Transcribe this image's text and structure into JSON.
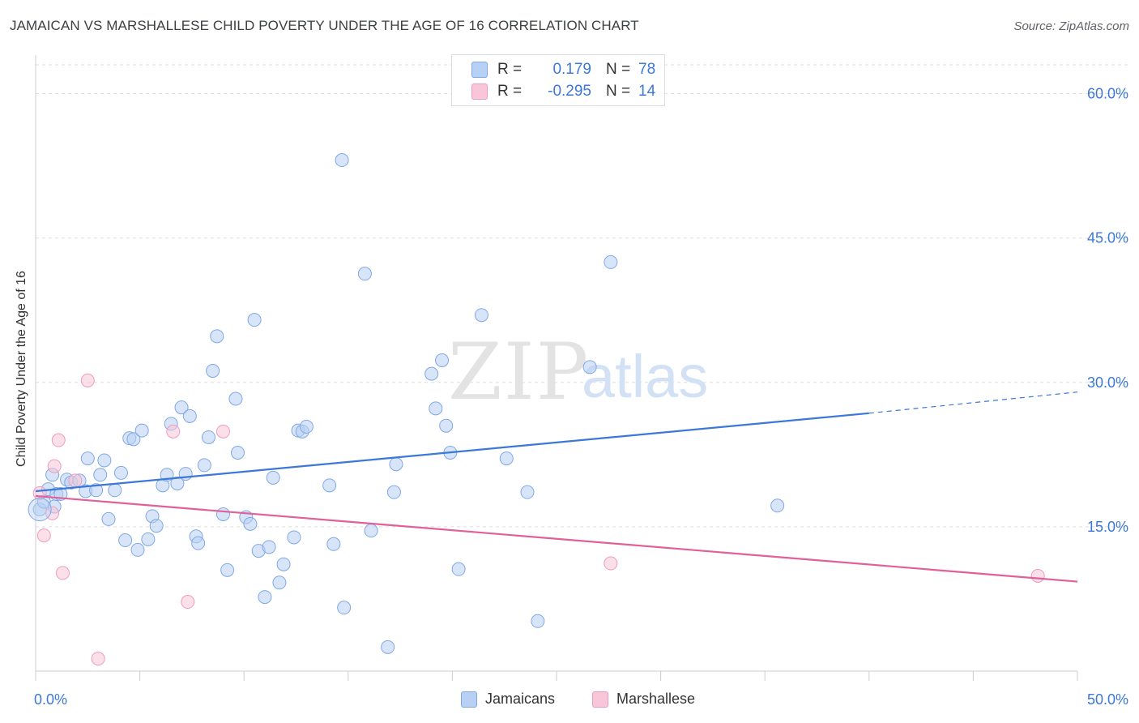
{
  "title": "JAMAICAN VS MARSHALLESE CHILD POVERTY UNDER THE AGE OF 16 CORRELATION CHART",
  "source": "Source: ZipAtlas.com",
  "watermark": {
    "zip": "ZIP",
    "atlas": "atlas"
  },
  "colors": {
    "blue": "#3b78d8",
    "blue_fill": "#b8d0f3",
    "blue_stroke": "#7fa8e6",
    "pink": "#e0609a",
    "pink_fill": "#f8c6d8",
    "pink_stroke": "#ef9bbb",
    "grid": "#dddddd",
    "axis_label": "#3b78d8"
  },
  "legend": {
    "rows": [
      {
        "r_label": "R =",
        "r_value": "0.179",
        "n_label": "N =",
        "n_value": "78"
      },
      {
        "r_label": "R =",
        "r_value": "-0.295",
        "n_label": "N =",
        "n_value": "14"
      }
    ],
    "bottom": [
      "Jamaicans",
      "Marshallese"
    ]
  },
  "chart_data": {
    "type": "scatter",
    "title": "JAMAICAN VS MARSHALLESE CHILD POVERTY UNDER THE AGE OF 16 CORRELATION CHART",
    "xlabel": "",
    "ylabel": "Child Poverty Under the Age of 16",
    "xlim": [
      0,
      50
    ],
    "ylim": [
      0,
      63
    ],
    "x_tick_labels": [
      "0.0%",
      "50.0%"
    ],
    "y_ticks": [
      15,
      30,
      45,
      60
    ],
    "y_tick_labels": [
      "15.0%",
      "30.0%",
      "45.0%",
      "60.0%"
    ],
    "grid": true,
    "legend_position": "top-center",
    "series": [
      {
        "name": "Jamaicans",
        "color": "#3b78d8",
        "points": [
          [
            0.2,
            16.8
          ],
          [
            0.4,
            17.6
          ],
          [
            0.6,
            18.9
          ],
          [
            0.8,
            20.4
          ],
          [
            0.9,
            17.1
          ],
          [
            1.0,
            18.4
          ],
          [
            1.2,
            18.4
          ],
          [
            1.5,
            19.9
          ],
          [
            1.7,
            19.6
          ],
          [
            2.1,
            19.8
          ],
          [
            2.4,
            18.7
          ],
          [
            2.5,
            22.1
          ],
          [
            2.9,
            18.8
          ],
          [
            3.1,
            20.4
          ],
          [
            3.3,
            21.9
          ],
          [
            3.5,
            15.8
          ],
          [
            3.8,
            18.8
          ],
          [
            4.1,
            20.6
          ],
          [
            4.3,
            13.6
          ],
          [
            4.5,
            24.2
          ],
          [
            4.7,
            24.1
          ],
          [
            4.9,
            12.6
          ],
          [
            5.1,
            25.0
          ],
          [
            5.4,
            13.7
          ],
          [
            5.6,
            16.1
          ],
          [
            5.8,
            15.1
          ],
          [
            6.1,
            19.3
          ],
          [
            6.3,
            20.4
          ],
          [
            6.5,
            25.7
          ],
          [
            6.8,
            19.5
          ],
          [
            7.0,
            27.4
          ],
          [
            7.2,
            20.5
          ],
          [
            7.4,
            26.5
          ],
          [
            7.7,
            14.0
          ],
          [
            7.8,
            13.3
          ],
          [
            8.1,
            21.4
          ],
          [
            8.3,
            24.3
          ],
          [
            8.5,
            31.2
          ],
          [
            8.7,
            34.8
          ],
          [
            9.0,
            16.3
          ],
          [
            9.2,
            10.5
          ],
          [
            9.6,
            28.3
          ],
          [
            9.7,
            22.7
          ],
          [
            10.1,
            16.0
          ],
          [
            10.3,
            15.3
          ],
          [
            10.5,
            36.5
          ],
          [
            10.7,
            12.5
          ],
          [
            11.0,
            7.7
          ],
          [
            11.2,
            12.9
          ],
          [
            11.4,
            20.1
          ],
          [
            11.7,
            9.2
          ],
          [
            11.9,
            11.1
          ],
          [
            12.4,
            13.9
          ],
          [
            12.6,
            25.0
          ],
          [
            12.8,
            24.9
          ],
          [
            13.0,
            25.4
          ],
          [
            14.1,
            19.3
          ],
          [
            14.3,
            13.2
          ],
          [
            14.7,
            53.1
          ],
          [
            14.8,
            6.6
          ],
          [
            15.8,
            41.3
          ],
          [
            16.1,
            14.6
          ],
          [
            16.9,
            2.5
          ],
          [
            17.2,
            18.6
          ],
          [
            17.3,
            21.5
          ],
          [
            19.0,
            30.9
          ],
          [
            19.2,
            27.3
          ],
          [
            19.5,
            32.3
          ],
          [
            19.7,
            25.5
          ],
          [
            19.9,
            22.7
          ],
          [
            20.3,
            10.6
          ],
          [
            21.4,
            37.0
          ],
          [
            22.6,
            22.1
          ],
          [
            23.6,
            18.6
          ],
          [
            24.1,
            5.2
          ],
          [
            26.6,
            31.6
          ],
          [
            27.6,
            42.5
          ],
          [
            35.6,
            17.2
          ]
        ],
        "trend": {
          "x0": 0,
          "y0": 18.7,
          "x1": 40,
          "y1": 26.8,
          "dash_to_x": 50,
          "dash_to_y": 29.0
        },
        "r": 0.179,
        "n": 78
      },
      {
        "name": "Marshallese",
        "color": "#e0609a",
        "points": [
          [
            0.2,
            18.5
          ],
          [
            0.4,
            14.1
          ],
          [
            0.8,
            16.4
          ],
          [
            0.9,
            21.3
          ],
          [
            1.1,
            24.0
          ],
          [
            1.3,
            10.2
          ],
          [
            1.9,
            19.8
          ],
          [
            2.5,
            30.2
          ],
          [
            3.0,
            1.3
          ],
          [
            6.6,
            24.9
          ],
          [
            7.3,
            7.2
          ],
          [
            9.0,
            24.9
          ],
          [
            27.6,
            11.2
          ],
          [
            48.1,
            9.9
          ]
        ],
        "trend": {
          "x0": 0,
          "y0": 18.2,
          "x1": 50,
          "y1": 9.3
        },
        "r": -0.295,
        "n": 14
      }
    ]
  }
}
